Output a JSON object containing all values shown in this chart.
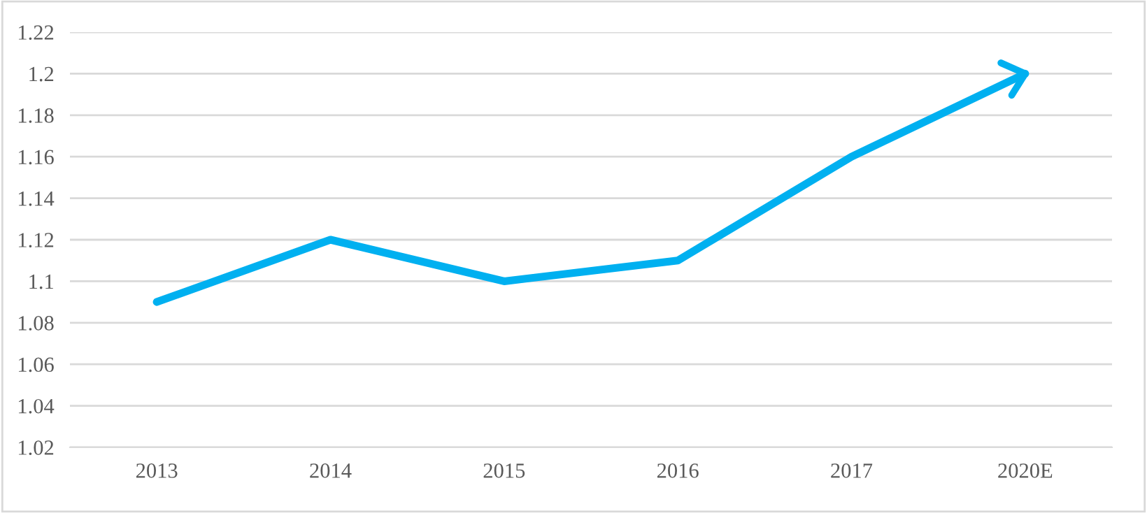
{
  "chart_data": {
    "type": "line",
    "categories": [
      "2013",
      "2014",
      "2015",
      "2016",
      "2017",
      "2020E"
    ],
    "series": [
      {
        "color": "#00b0f0",
        "values": [
          1.09,
          1.12,
          1.1,
          1.11,
          1.16,
          1.2
        ]
      }
    ],
    "ylim": [
      1.02,
      1.22
    ],
    "yticks": [
      1.02,
      1.04,
      1.06,
      1.08,
      1.1,
      1.12,
      1.14,
      1.16,
      1.18,
      1.2,
      1.22
    ],
    "grid": "y",
    "marker": "none",
    "line_style": "solid",
    "legend": false
  }
}
